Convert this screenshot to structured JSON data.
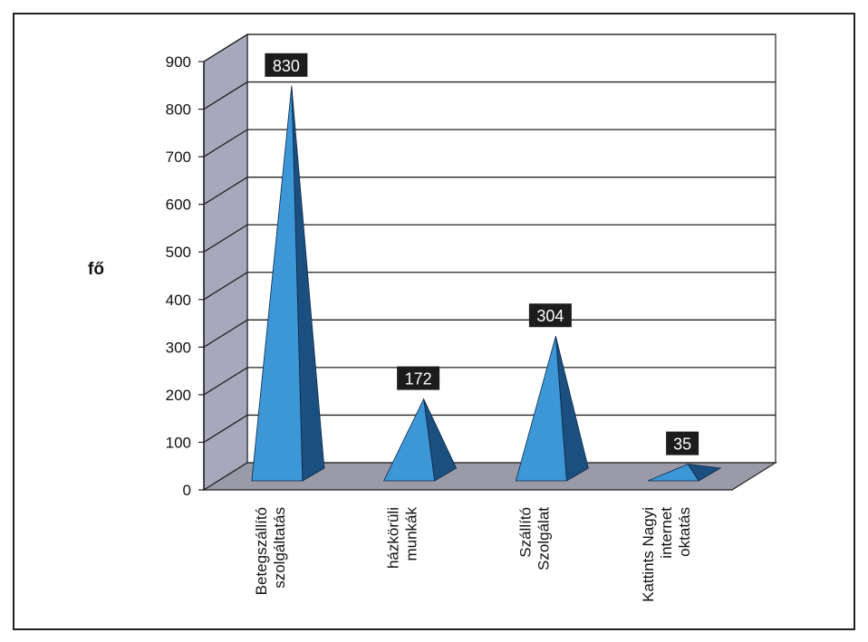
{
  "chart_data": {
    "type": "bar",
    "style": "3d-pyramid",
    "ylabel": "fő",
    "ylim": [
      0,
      900
    ],
    "yticks": [
      0,
      100,
      200,
      300,
      400,
      500,
      600,
      700,
      800,
      900
    ],
    "grid": true,
    "categories": [
      [
        "Betegszállító",
        "szolgáltatás"
      ],
      [
        "házkörüli",
        "munkák"
      ],
      [
        "Szállító",
        "Szolgálat"
      ],
      [
        "Kattints Nagyi",
        "internet",
        "oktatás"
      ]
    ],
    "values": [
      830,
      172,
      304,
      35
    ],
    "data_labels": [
      "830",
      "172",
      "304",
      "35"
    ],
    "colors": {
      "pyramid_front": "#3d97d6",
      "pyramid_side": "#1b4f80",
      "floor": "#9a9aa8",
      "left_wall": "#a8a8bc",
      "label_bg": "#1c1c1c"
    }
  }
}
